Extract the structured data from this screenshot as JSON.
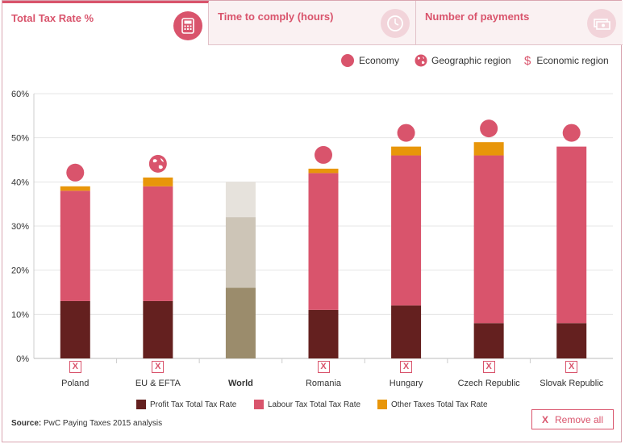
{
  "tabs": [
    {
      "label": "Total Tax Rate %",
      "icon": "calculator-icon",
      "active": true
    },
    {
      "label": "Time to comply (hours)",
      "icon": "clock-icon",
      "active": false
    },
    {
      "label": "Number of payments",
      "icon": "money-icon",
      "active": false
    }
  ],
  "legend_top": {
    "economy": "Economy",
    "geographic": "Geographic region",
    "economic": "Economic region",
    "economic_symbol": "$"
  },
  "chart_data": {
    "type": "bar",
    "stacked": true,
    "categories": [
      "Poland",
      "EU & EFTA",
      "World",
      "Romania",
      "Hungary",
      "Czech Republic",
      "Slovak Republic"
    ],
    "category_types": [
      "economy",
      "geographic",
      "world",
      "economy",
      "economy",
      "economy",
      "economy"
    ],
    "series": [
      {
        "name": "Profit Tax Total Tax Rate",
        "color": "#64201f",
        "values": [
          13,
          13,
          16,
          11,
          12,
          8,
          8
        ]
      },
      {
        "name": "Labour Tax Total Tax Rate",
        "color": "#d9546c",
        "values": [
          25,
          26,
          16,
          31,
          34,
          38,
          40
        ]
      },
      {
        "name": "Other Taxes Total Tax Rate",
        "color": "#e8960a",
        "values": [
          1,
          2,
          8,
          1,
          2,
          3,
          0
        ]
      }
    ],
    "world_colors": [
      "#9b8c6c",
      "#cdc5b7",
      "#e6e2dc"
    ],
    "ylim": [
      0,
      60
    ],
    "yticks": [
      "0%",
      "10%",
      "20%",
      "30%",
      "40%",
      "50%",
      "60%"
    ],
    "ytick_values": [
      0,
      10,
      20,
      30,
      40,
      50,
      60
    ],
    "grid": true
  },
  "source_label": "Source:",
  "source_text": "PwC Paying Taxes 2015 analysis",
  "remove_box_label": "X",
  "remove_all": {
    "x": "X",
    "label": "Remove all"
  }
}
